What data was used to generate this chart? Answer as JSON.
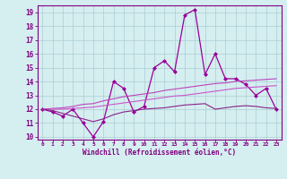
{
  "x_values": [
    0,
    1,
    2,
    3,
    4,
    5,
    6,
    7,
    8,
    9,
    10,
    11,
    12,
    13,
    14,
    15,
    16,
    17,
    18,
    19,
    20,
    21,
    22,
    23
  ],
  "series": [
    {
      "y": [
        12,
        11.8,
        11.5,
        12,
        11,
        10,
        11.1,
        14,
        13.5,
        11.8,
        12.2,
        15,
        15.5,
        14.7,
        18.8,
        19.2,
        14.5,
        16,
        14.2,
        14.2,
        13.8,
        13,
        13.5,
        12
      ],
      "color": "#990099",
      "linewidth": 0.9,
      "marker": "D",
      "markersize": 2.0
    },
    {
      "y": [
        12.0,
        12.05,
        12.1,
        12.2,
        12.35,
        12.4,
        12.6,
        12.75,
        12.9,
        13.0,
        13.1,
        13.2,
        13.35,
        13.45,
        13.55,
        13.65,
        13.75,
        13.85,
        13.9,
        14.0,
        14.05,
        14.1,
        14.15,
        14.2
      ],
      "color": "#bb44bb",
      "linewidth": 0.8,
      "marker": null,
      "markersize": 0
    },
    {
      "y": [
        12.0,
        12.0,
        12.0,
        12.05,
        12.1,
        12.15,
        12.25,
        12.35,
        12.45,
        12.55,
        12.65,
        12.75,
        12.85,
        12.95,
        13.0,
        13.1,
        13.2,
        13.3,
        13.4,
        13.5,
        13.55,
        13.6,
        13.65,
        13.7
      ],
      "color": "#cc55cc",
      "linewidth": 0.8,
      "marker": null,
      "markersize": 0
    },
    {
      "y": [
        12.0,
        11.9,
        11.7,
        11.5,
        11.3,
        11.1,
        11.3,
        11.6,
        11.8,
        11.9,
        12.0,
        12.05,
        12.1,
        12.2,
        12.3,
        12.35,
        12.4,
        12.0,
        12.1,
        12.2,
        12.25,
        12.2,
        12.1,
        12.05
      ],
      "color": "#882288",
      "linewidth": 0.8,
      "marker": null,
      "markersize": 0
    }
  ],
  "xlim": [
    -0.5,
    23.5
  ],
  "ylim": [
    9.8,
    19.5
  ],
  "yticks": [
    10,
    11,
    12,
    13,
    14,
    15,
    16,
    17,
    18,
    19
  ],
  "xticks": [
    0,
    1,
    2,
    3,
    4,
    5,
    6,
    7,
    8,
    9,
    10,
    11,
    12,
    13,
    14,
    15,
    16,
    17,
    18,
    19,
    20,
    21,
    22,
    23
  ],
  "xlabel": "Windchill (Refroidissement éolien,°C)",
  "background_color": "#d5eef0",
  "grid_color": "#aacdd4",
  "axis_color": "#800080",
  "tick_color": "#800080",
  "label_color": "#800080",
  "title": ""
}
